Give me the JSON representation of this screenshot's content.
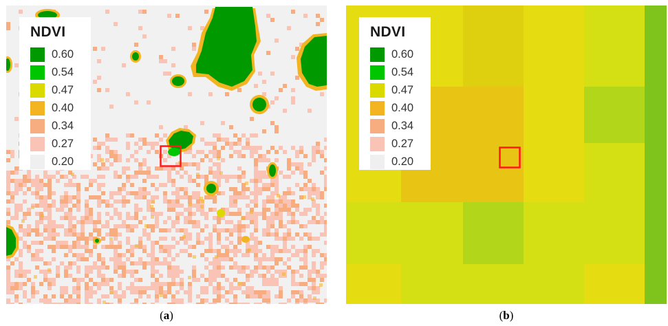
{
  "legend": {
    "title": "NDVI",
    "items": [
      {
        "label": "0.60",
        "color": "#009a00"
      },
      {
        "label": "0.54",
        "color": "#00c600"
      },
      {
        "label": "0.47",
        "color": "#dada00"
      },
      {
        "label": "0.40",
        "color": "#f2b521"
      },
      {
        "label": "0.34",
        "color": "#f7ad7f"
      },
      {
        "label": "0.27",
        "color": "#f9c4b6"
      },
      {
        "label": "0.20",
        "color": "#efefef"
      }
    ]
  },
  "panels": [
    {
      "caption_letter": "a",
      "highlight_color": "#ff1a1a"
    },
    {
      "caption_letter": "b",
      "highlight_color": "#ff1a1a"
    }
  ]
}
